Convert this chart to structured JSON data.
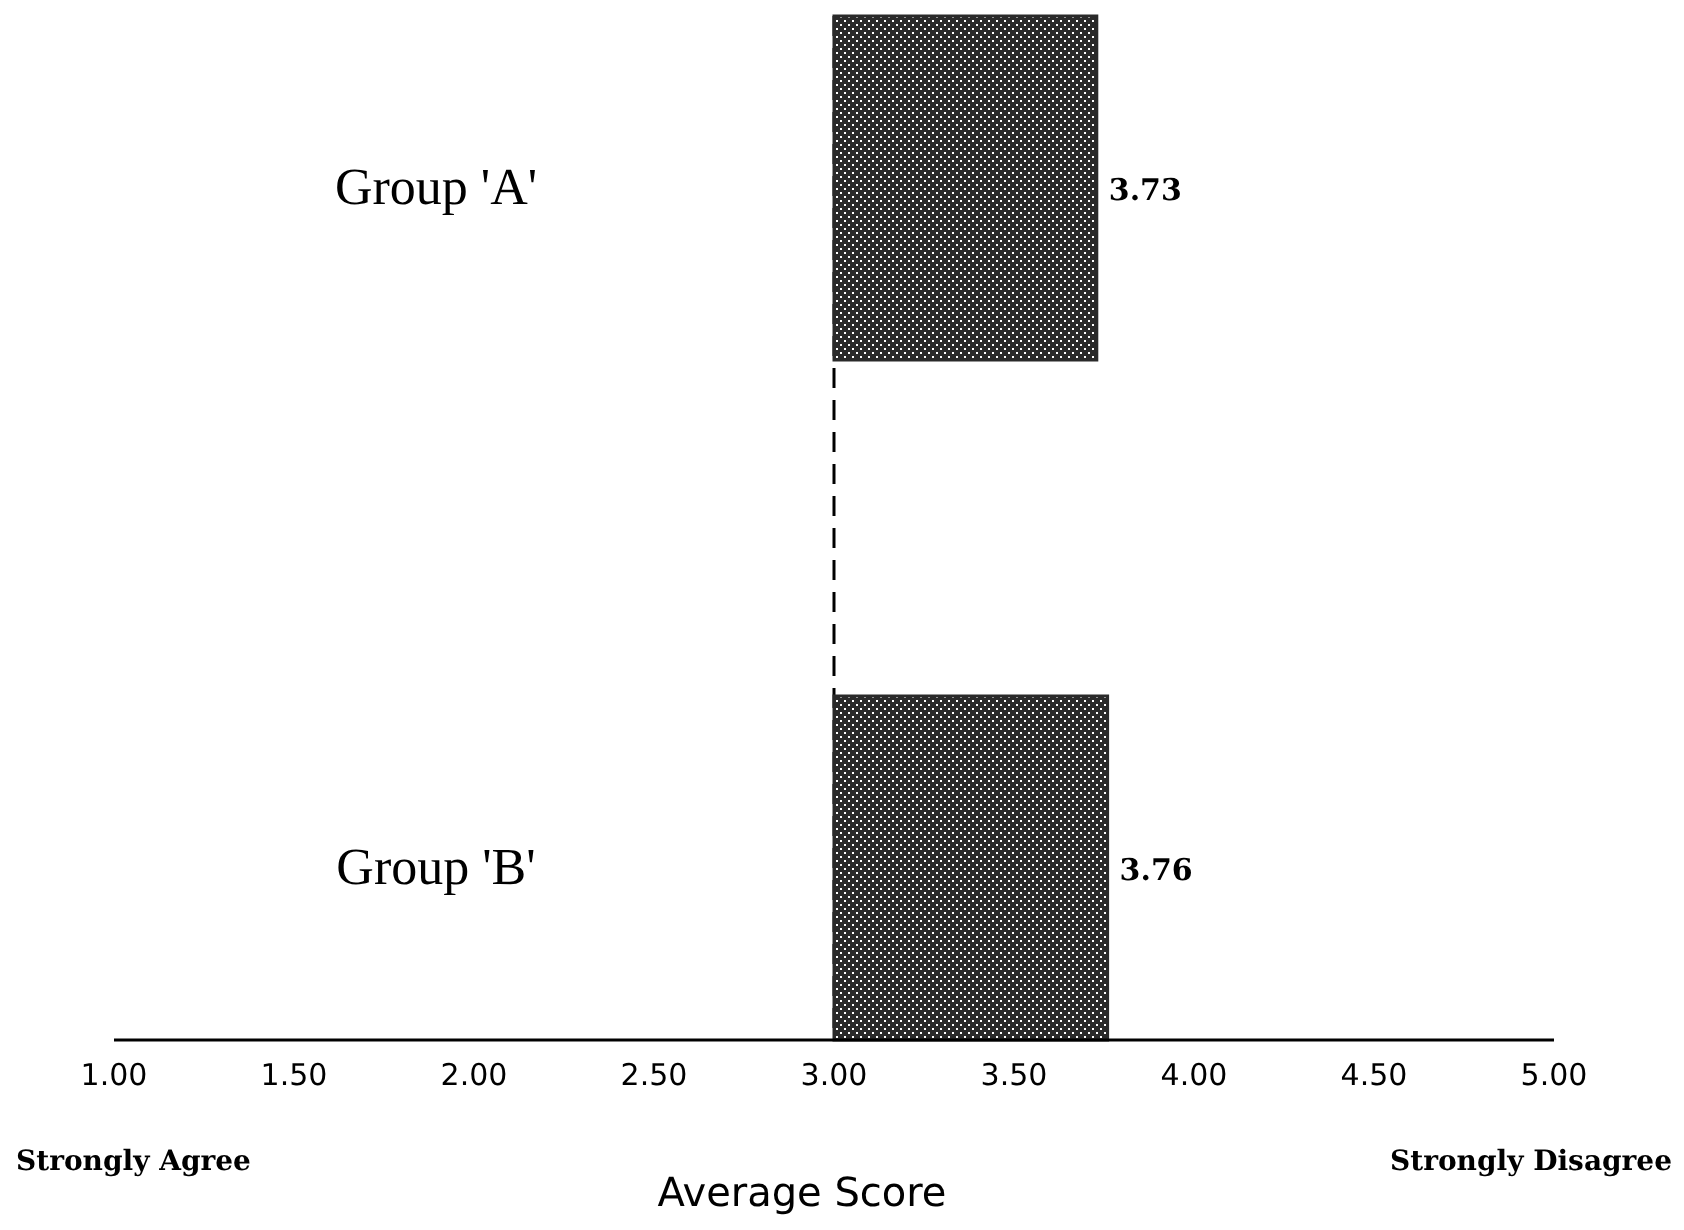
{
  "chart_data": {
    "type": "bar",
    "orientation": "horizontal",
    "categories": [
      "Group 'A'",
      "Group 'B'"
    ],
    "values": [
      0.73,
      0.76
    ],
    "base": [
      3,
      3
    ],
    "value_labels": [
      "3.73",
      "3.76"
    ],
    "color": "#2a2a2a",
    "xlim": [
      1,
      5
    ],
    "xticks": [
      {
        "value": 1,
        "label": "1.00"
      },
      {
        "value": 1.5,
        "label": "1.50"
      },
      {
        "value": 2,
        "label": "2.00"
      },
      {
        "value": 2.5,
        "label": "2.50"
      },
      {
        "value": 3,
        "label": "3.00"
      },
      {
        "value": 3.5,
        "label": "3.50"
      },
      {
        "value": 4,
        "label": "4.00"
      },
      {
        "value": 4.5,
        "label": "4.50"
      },
      {
        "value": 5,
        "label": "5.00"
      }
    ],
    "xlabel": "Average Score",
    "ref_lines": [
      {
        "axis": "x",
        "value": 3,
        "line_style": "dashed",
        "color": "#000000"
      }
    ],
    "annotations": [
      "Strongly Agree",
      "Strongly Disagree"
    ],
    "grid": false
  }
}
